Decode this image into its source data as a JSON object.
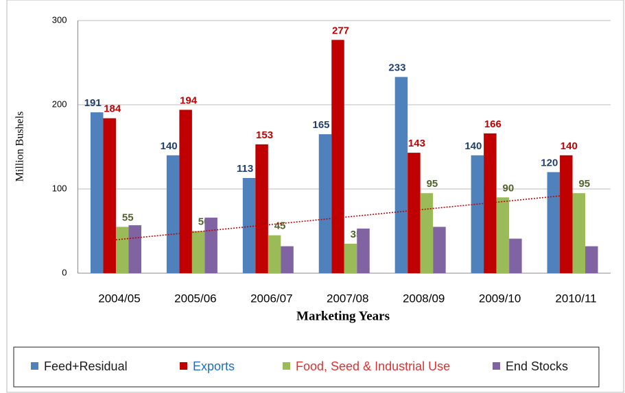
{
  "chart_data": {
    "type": "bar",
    "x_label": "Marketing Years",
    "y_label": "Million Bushels",
    "categories": [
      "2004/05",
      "2005/06",
      "2006/07",
      "2007/08",
      "2008/09",
      "2009/10",
      "2010/11"
    ],
    "series": [
      {
        "name": "Feed+Residual",
        "color": "#4f81bd",
        "label_color": "#1f3f6e",
        "legend_text_color": "#1a1a1a",
        "show_labels": true,
        "values": [
          191,
          140,
          113,
          165,
          233,
          140,
          120
        ]
      },
      {
        "name": "Exports",
        "color": "#c00000",
        "label_color": "#c00000",
        "legend_text_color": "#1f6fc0",
        "show_labels": true,
        "values": [
          184,
          194,
          153,
          277,
          143,
          166,
          140
        ]
      },
      {
        "name": "Food, Seed & Industrial Use",
        "color": "#9bbb59",
        "label_color": "#4f6228",
        "legend_text_color": "#e03030",
        "show_labels": true,
        "values": [
          55,
          50,
          45,
          35,
          95,
          90,
          95
        ]
      },
      {
        "name": "End Stocks",
        "color": "#8064a2",
        "label_color": "#1a1a1a",
        "legend_text_color": "#1a1a1a",
        "show_labels": false,
        "values": [
          57,
          66,
          32,
          53,
          55,
          41,
          32
        ]
      }
    ],
    "trendline_series": 2,
    "trendline_color": "#c00000",
    "ylim": [
      0,
      300
    ],
    "yticks": [
      0,
      100,
      200,
      300
    ],
    "grid": true
  }
}
